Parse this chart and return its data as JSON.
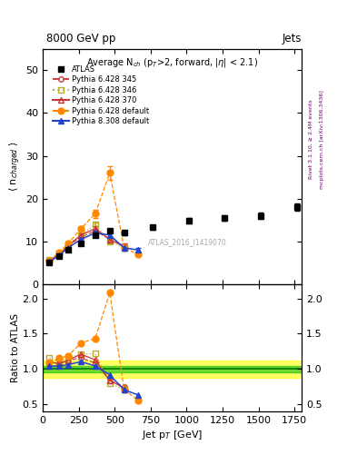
{
  "title_top": "8000 GeV pp",
  "title_right": "Jets",
  "right_label_top": "Rivet 3.1.10, ≥ 2.4M events",
  "right_label_bot": "mcplots.cern.ch [arXiv:1306.3436]",
  "watermark": "ATLAS_2016_I1419070",
  "xlabel": "Jet p$_T$ [GeV]",
  "ylabel_main": "⟨ n$_{charged}$ ⟩",
  "ylabel_ratio": "Ratio to ATLAS",
  "xlim": [
    0,
    1800
  ],
  "ylim_main": [
    0,
    55
  ],
  "ylim_ratio": [
    0.4,
    2.2
  ],
  "yticks_main": [
    0,
    10,
    20,
    30,
    40,
    50
  ],
  "yticks_ratio": [
    0.5,
    1.0,
    1.5,
    2.0
  ],
  "atlas_x": [
    45,
    115,
    175,
    265,
    365,
    465,
    565,
    765,
    1015,
    1265,
    1515,
    1765
  ],
  "atlas_y": [
    5.0,
    6.5,
    8.0,
    9.5,
    11.5,
    12.5,
    12.0,
    13.3,
    14.8,
    15.5,
    16.0,
    18.0
  ],
  "atlas_yerr": [
    0.3,
    0.3,
    0.3,
    0.4,
    0.5,
    0.5,
    0.6,
    0.5,
    0.6,
    0.6,
    0.7,
    0.8
  ],
  "p6_345_x": [
    45,
    115,
    175,
    265,
    365,
    465,
    565
  ],
  "p6_345_y": [
    5.5,
    7.0,
    9.0,
    11.0,
    12.5,
    10.5,
    9.0
  ],
  "p6_345_yerr": [
    0.2,
    0.2,
    0.3,
    0.4,
    0.5,
    0.5,
    0.5
  ],
  "p6_346_x": [
    45,
    115,
    175,
    265,
    365,
    465,
    565
  ],
  "p6_346_y": [
    5.8,
    7.2,
    9.3,
    11.5,
    14.0,
    10.0,
    8.5
  ],
  "p6_346_yerr": [
    0.2,
    0.2,
    0.3,
    0.4,
    0.5,
    0.5,
    0.5
  ],
  "p6_370_x": [
    45,
    115,
    175,
    265,
    365,
    465,
    565
  ],
  "p6_370_y": [
    5.5,
    7.0,
    9.0,
    11.5,
    13.0,
    10.5,
    8.8
  ],
  "p6_370_yerr": [
    0.2,
    0.2,
    0.3,
    0.4,
    0.5,
    0.5,
    0.5
  ],
  "p6_def_x": [
    45,
    115,
    175,
    265,
    365,
    465,
    565,
    665
  ],
  "p6_def_y": [
    5.5,
    7.5,
    9.5,
    13.0,
    16.5,
    26.0,
    8.5,
    7.0
  ],
  "p6_def_yerr": [
    0.2,
    0.3,
    0.4,
    0.5,
    1.0,
    1.5,
    0.5,
    0.5
  ],
  "p8_def_x": [
    45,
    115,
    175,
    265,
    365,
    465,
    565,
    665
  ],
  "p8_def_y": [
    5.2,
    6.8,
    8.5,
    10.5,
    12.0,
    11.5,
    8.5,
    8.0
  ],
  "p8_def_yerr": [
    0.2,
    0.2,
    0.3,
    0.4,
    0.5,
    0.5,
    0.5,
    0.5
  ],
  "color_345": "#cc4444",
  "color_346": "#bbaa33",
  "color_370": "#cc3333",
  "color_def6": "#ff8800",
  "color_def8": "#2244cc",
  "band_green_lo": 0.95,
  "band_green_hi": 1.05,
  "band_yellow_lo": 0.88,
  "band_yellow_hi": 1.12
}
